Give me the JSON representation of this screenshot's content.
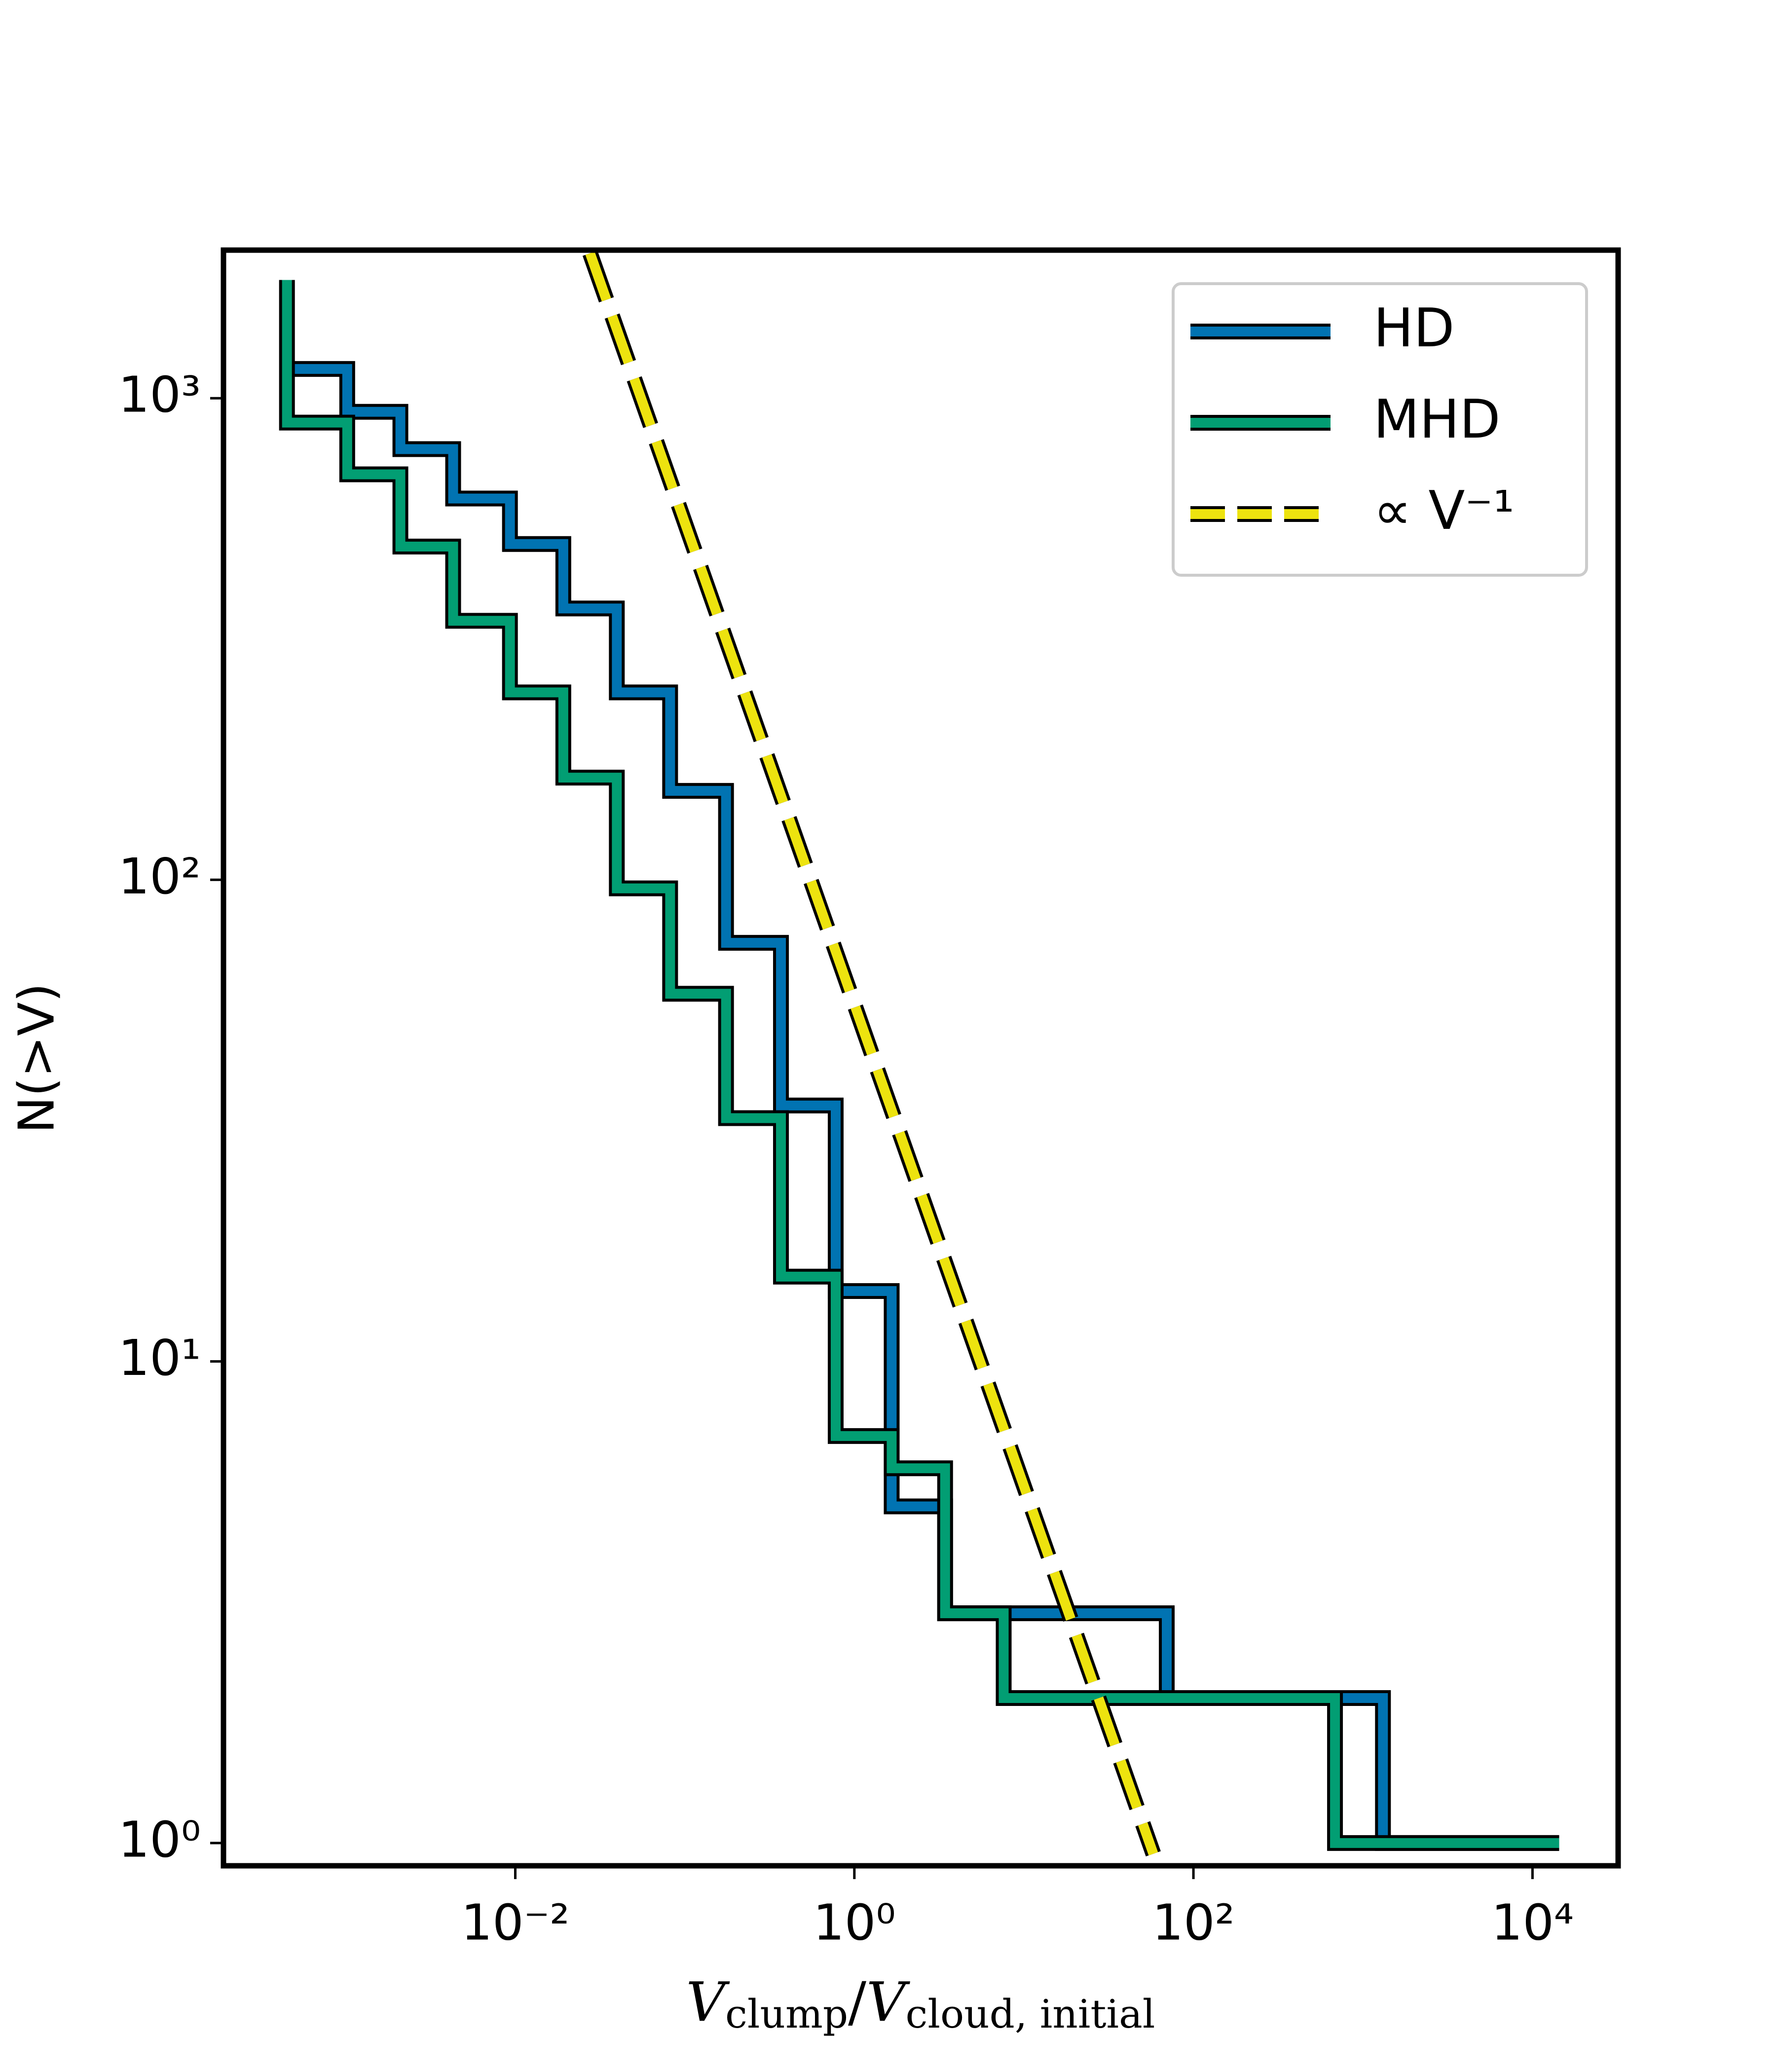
{
  "chart_data": {
    "type": "step",
    "xlabel": {
      "v1": "V",
      "sub1": "clump",
      "slash": "/",
      "v2": "V",
      "sub2": "cloud, initial"
    },
    "ylabel": "N(>V)",
    "xscale": "log",
    "yscale": "log",
    "xlim": [
      0.00019,
      32000
    ],
    "ylim": [
      0.897,
      2030
    ],
    "xticks": [
      {
        "value": 0.01,
        "label": "10⁻²"
      },
      {
        "value": 1,
        "label": "10⁰"
      },
      {
        "value": 100,
        "label": "10²"
      },
      {
        "value": 10000,
        "label": "10⁴"
      }
    ],
    "yticks": [
      {
        "value": 1,
        "label": "10⁰"
      },
      {
        "value": 10,
        "label": "10¹"
      },
      {
        "value": 100,
        "label": "10²"
      },
      {
        "value": 1000,
        "label": "10³"
      }
    ],
    "legend": "upper right",
    "series": [
      {
        "name": "HD",
        "color": "#0173b2",
        "style": "step",
        "x": [
          0.00045,
          0.00102,
          0.0021,
          0.0043,
          0.0093,
          0.0192,
          0.0397,
          0.0819,
          0.175,
          0.369,
          0.776,
          1.66,
          3.43,
          69.6,
          1312,
          14360
        ],
        "values": [
          1150,
          937,
          784,
          619,
          498,
          366,
          245,
          153,
          74,
          34,
          14,
          5,
          3,
          2,
          1,
          1
        ]
      },
      {
        "name": "MHD",
        "color": "#029e73",
        "style": "step",
        "x": [
          0.00045,
          0.00045,
          0.00102,
          0.0021,
          0.0043,
          0.0093,
          0.0192,
          0.0397,
          0.0819,
          0.175,
          0.369,
          0.776,
          1.66,
          3.43,
          7.6,
          684,
          14360
        ],
        "values": [
          1760,
          890,
          695,
          492,
          345,
          245,
          163,
          96,
          58,
          32,
          15,
          7,
          6,
          3,
          2,
          1,
          1
        ]
      },
      {
        "name": "∝  V⁻¹",
        "color": "#ede30f",
        "style": "dashed",
        "x": [
          0.0276,
          58
        ],
        "values": [
          2000,
          0.95
        ]
      }
    ]
  }
}
